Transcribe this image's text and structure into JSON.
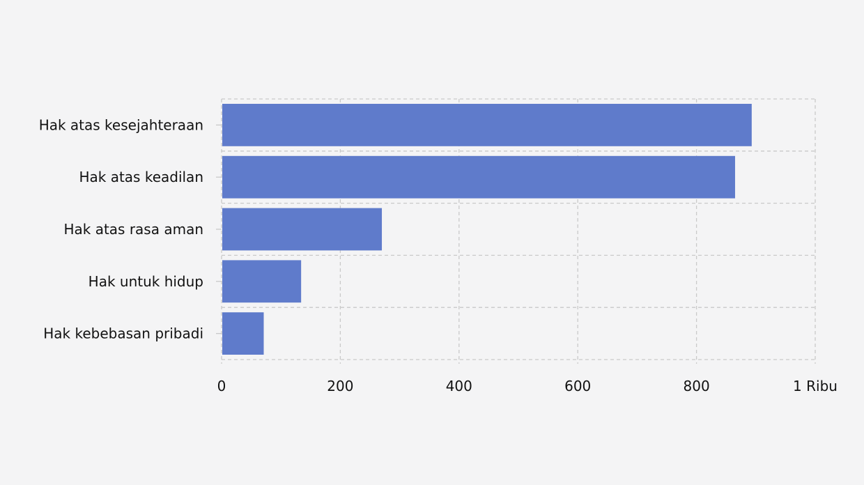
{
  "chart_data": {
    "type": "bar",
    "orientation": "horizontal",
    "categories": [
      "Hak atas kesejahteraan",
      "Hak atas keadilan",
      "Hak atas rasa aman",
      "Hak untuk hidup",
      "Hak kebebasan pribadi"
    ],
    "values": [
      893,
      865,
      270,
      134,
      71
    ],
    "x_ticks": [
      {
        "value": 0,
        "label": "0"
      },
      {
        "value": 200,
        "label": "200"
      },
      {
        "value": 400,
        "label": "400"
      },
      {
        "value": 600,
        "label": "600"
      },
      {
        "value": 800,
        "label": "800"
      },
      {
        "value": 1000,
        "label": "1 Ribu"
      }
    ],
    "xlim": [
      0,
      1000
    ],
    "title": "",
    "xlabel": "",
    "ylabel": "",
    "grid": true,
    "grid_style": "dashed",
    "bar_color": "#5f7bcb",
    "background_color": "#f4f4f5"
  }
}
